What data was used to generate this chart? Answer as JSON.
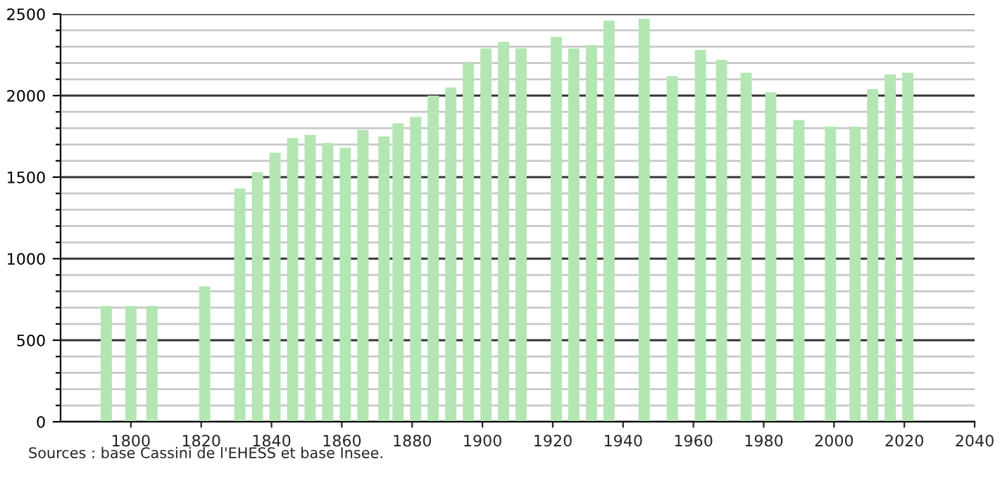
{
  "chart_data": {
    "type": "bar",
    "x": [
      1793,
      1800,
      1806,
      1821,
      1831,
      1836,
      1841,
      1846,
      1851,
      1856,
      1861,
      1866,
      1872,
      1876,
      1881,
      1886,
      1891,
      1896,
      1901,
      1906,
      1911,
      1921,
      1926,
      1931,
      1936,
      1946,
      1954,
      1962,
      1968,
      1975,
      1982,
      1990,
      1999,
      2006,
      2011,
      2016,
      2021
    ],
    "values": [
      710,
      710,
      710,
      830,
      1430,
      1530,
      1650,
      1740,
      1760,
      1710,
      1680,
      1790,
      1750,
      1830,
      1870,
      2000,
      2050,
      2200,
      2290,
      2330,
      2290,
      2360,
      2290,
      2310,
      2460,
      2470,
      2120,
      2280,
      2220,
      2140,
      2020,
      1850,
      1810,
      1810,
      2040,
      2130,
      2140
    ],
    "color": "#b3e6b3",
    "xlim": [
      1780,
      2040
    ],
    "xticks": [
      1800,
      1820,
      1840,
      1860,
      1880,
      1900,
      1920,
      1940,
      1960,
      1980,
      2000,
      2020,
      2040
    ],
    "ylim": [
      0,
      2500
    ],
    "yticks": [
      0,
      {
        "value": 100,
        "label": null
      },
      {
        "value": 200,
        "label": null
      },
      {
        "value": 300,
        "label": null
      },
      {
        "value": 400,
        "label": null
      },
      500,
      {
        "value": 600,
        "label": null
      },
      {
        "value": 700,
        "label": null
      },
      {
        "value": 800,
        "label": null
      },
      {
        "value": 900,
        "label": null
      },
      1000,
      {
        "value": 1100,
        "label": null
      },
      {
        "value": 1200,
        "label": null
      },
      {
        "value": 1300,
        "label": null
      },
      {
        "value": 1400,
        "label": null
      },
      1500,
      {
        "value": 1600,
        "label": null
      },
      {
        "value": 1700,
        "label": null
      },
      {
        "value": 1800,
        "label": null
      },
      {
        "value": 1900,
        "label": null
      },
      2000,
      {
        "value": 2100,
        "label": null
      },
      {
        "value": 2200,
        "label": null
      },
      {
        "value": 2300,
        "label": null
      },
      {
        "value": 2400,
        "label": null
      },
      2500
    ],
    "grid": "y",
    "annotations": [
      "Sources : base Cassini de l'EHESS et base Insee."
    ]
  }
}
